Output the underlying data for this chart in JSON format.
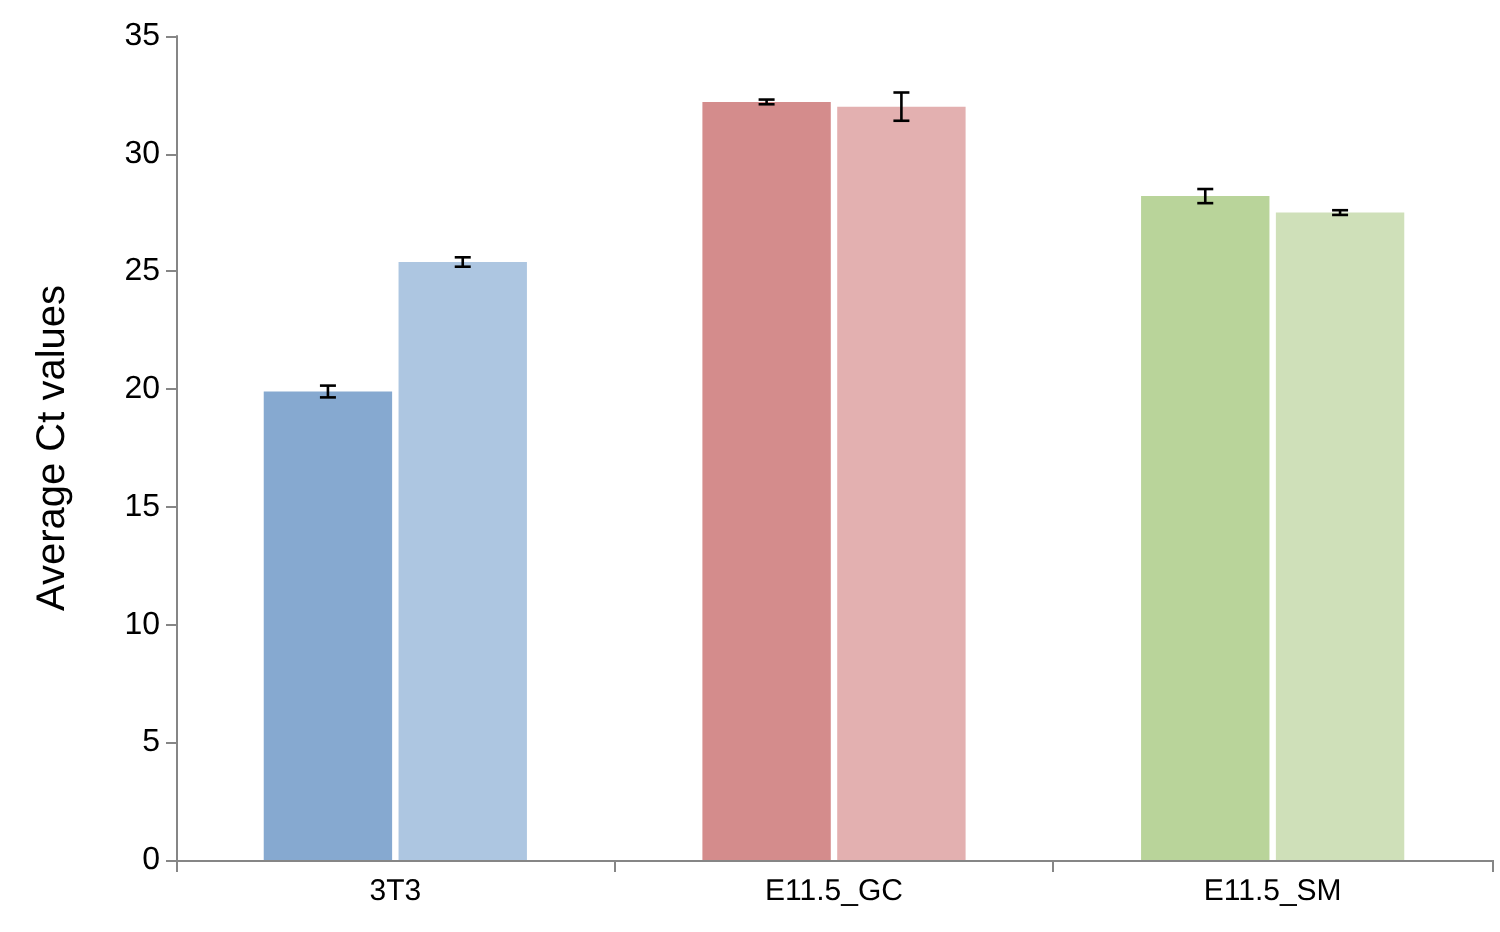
{
  "chart_data": {
    "type": "bar",
    "ylabel": "Average Ct values",
    "categories": [
      "3T3",
      "E11.5_GC",
      "E11.5_SM"
    ],
    "series": [
      {
        "colors": [
          "#86a9d0",
          "#d48c8c",
          "#b9d49a"
        ],
        "values": [
          19.9,
          32.2,
          28.2
        ],
        "errors": [
          0.25,
          0.1,
          0.3
        ]
      },
      {
        "colors": [
          "#adc6e1",
          "#e3b0b0",
          "#cfe0b9"
        ],
        "values": [
          25.4,
          32.0,
          27.5
        ],
        "errors": [
          0.2,
          0.6,
          0.1
        ]
      }
    ],
    "ylim": [
      0,
      35
    ],
    "yticks": [
      0,
      5,
      10,
      15,
      20,
      25,
      30,
      35
    ],
    "grid": false
  }
}
